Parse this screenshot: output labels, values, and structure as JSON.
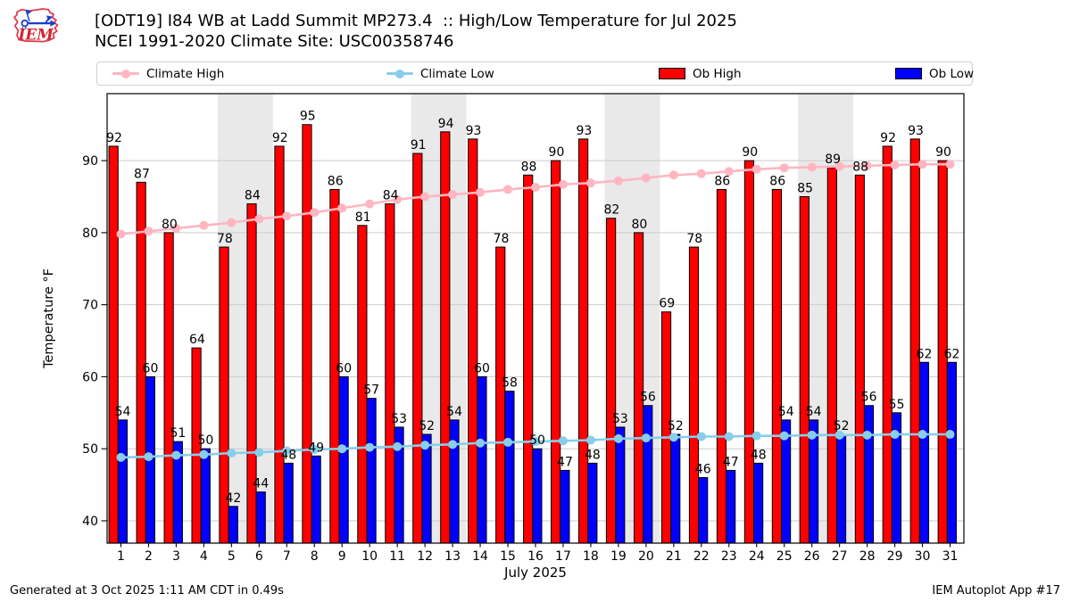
{
  "header": {
    "title": "[ODT19] I84 WB at Ladd Summit MP273.4  :: High/Low Temperature for Jul 2025",
    "subtitle": "NCEI 1991-2020 Climate Site: USC00358746"
  },
  "logo": {
    "text": "IEM"
  },
  "legend": [
    {
      "label": "Climate High",
      "type": "line",
      "color": "#ffb6c1"
    },
    {
      "label": "Climate Low",
      "type": "line",
      "color": "#87ceeb"
    },
    {
      "label": "Ob High",
      "type": "patch",
      "color": "#ff0000"
    },
    {
      "label": "Ob Low",
      "type": "patch",
      "color": "#0000ff"
    }
  ],
  "axes": {
    "y_ticks": [
      40,
      50,
      60,
      70,
      80,
      90
    ],
    "x_ticks": [
      1,
      2,
      3,
      4,
      5,
      6,
      7,
      8,
      9,
      10,
      11,
      12,
      13,
      14,
      15,
      16,
      17,
      18,
      19,
      20,
      21,
      22,
      23,
      24,
      25,
      26,
      27,
      28,
      29,
      30,
      31
    ]
  },
  "footer": {
    "left": "Generated at 3 Oct 2025 1:11 AM CDT in 0.49s",
    "right": "IEM Autoplot App #17"
  },
  "chart_data": {
    "type": "bar",
    "title": "[ODT19] I84 WB at Ladd Summit MP273.4 :: High/Low Temperature for Jul 2025",
    "xlabel": "July 2025",
    "ylabel": "Temperature °F",
    "x": [
      1,
      2,
      3,
      4,
      5,
      6,
      7,
      8,
      9,
      10,
      11,
      12,
      13,
      14,
      15,
      16,
      17,
      18,
      19,
      20,
      21,
      22,
      23,
      24,
      25,
      26,
      27,
      28,
      29,
      30,
      31
    ],
    "ylim": [
      36.9,
      99.3
    ],
    "grid": true,
    "legend_position": "top",
    "weekend_bands": [
      [
        5,
        6
      ],
      [
        12,
        13
      ],
      [
        19,
        20
      ],
      [
        26,
        27
      ]
    ],
    "colors": {
      "ob_high": "#ff0000",
      "ob_low": "#0000ff",
      "climate_high": "#ffb6c1",
      "climate_low": "#87ceeb",
      "weekend_band": "#e9e9e9",
      "gridline": "#cbcbcb",
      "bar_edge": "#000000"
    },
    "series": [
      {
        "name": "Ob High",
        "type": "bar",
        "color": "#ff0000",
        "values": [
          92,
          87,
          80,
          64,
          78,
          84,
          92,
          95,
          86,
          81,
          84,
          91,
          94,
          93,
          78,
          88,
          90,
          93,
          82,
          80,
          69,
          78,
          86,
          90,
          86,
          85,
          89,
          88,
          92,
          93,
          90
        ]
      },
      {
        "name": "Ob Low",
        "type": "bar",
        "color": "#0000ff",
        "values": [
          54,
          60,
          51,
          50,
          42,
          44,
          48,
          49,
          60,
          57,
          53,
          52,
          54,
          60,
          58,
          50,
          47,
          48,
          53,
          56,
          52,
          46,
          47,
          48,
          54,
          54,
          52,
          56,
          55,
          62,
          62
        ]
      },
      {
        "name": "Climate High",
        "type": "line",
        "color": "#ffb6c1",
        "values": [
          79.8,
          80.2,
          80.6,
          81.0,
          81.4,
          81.9,
          82.3,
          82.8,
          83.4,
          84.0,
          84.6,
          85.0,
          85.3,
          85.6,
          86.0,
          86.3,
          86.7,
          86.9,
          87.2,
          87.6,
          88.0,
          88.2,
          88.5,
          88.8,
          89.0,
          89.1,
          89.2,
          89.3,
          89.4,
          89.5,
          89.5
        ]
      },
      {
        "name": "Climate Low",
        "type": "line",
        "color": "#87ceeb",
        "values": [
          48.8,
          48.9,
          49.1,
          49.2,
          49.4,
          49.5,
          49.7,
          49.9,
          50.0,
          50.2,
          50.3,
          50.5,
          50.6,
          50.8,
          50.9,
          51.0,
          51.1,
          51.2,
          51.4,
          51.5,
          51.6,
          51.7,
          51.7,
          51.8,
          51.8,
          51.9,
          51.9,
          51.9,
          52.0,
          52.0,
          52.0
        ]
      }
    ]
  }
}
